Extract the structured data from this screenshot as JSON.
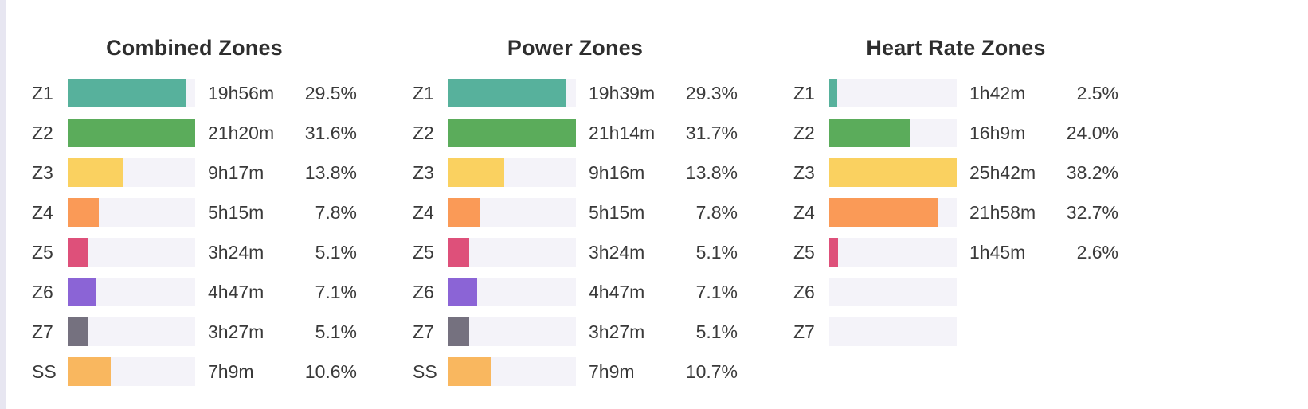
{
  "page": {
    "background_color": "#ffffff",
    "left_edge_strip_color": "#e7e6f1",
    "track_color": "#f4f3f9",
    "text_color": "#3a3a3a",
    "title_color": "#2e2e2e"
  },
  "chart_data": [
    {
      "type": "bar",
      "orientation": "horizontal",
      "title": "Combined Zones",
      "bar_scale": "relative-to-max-pct",
      "max_pct": 31.6,
      "categories": [
        "Z1",
        "Z2",
        "Z3",
        "Z4",
        "Z5",
        "Z6",
        "Z7",
        "SS"
      ],
      "rows": [
        {
          "zone": "Z1",
          "time": "19h56m",
          "pct_label": "29.5%",
          "pct": 29.5,
          "color": "#57b19c"
        },
        {
          "zone": "Z2",
          "time": "21h20m",
          "pct_label": "31.6%",
          "pct": 31.6,
          "color": "#5bac5b"
        },
        {
          "zone": "Z3",
          "time": "9h17m",
          "pct_label": "13.8%",
          "pct": 13.8,
          "color": "#fad160"
        },
        {
          "zone": "Z4",
          "time": "5h15m",
          "pct_label": "7.8%",
          "pct": 7.8,
          "color": "#fa9a57"
        },
        {
          "zone": "Z5",
          "time": "3h24m",
          "pct_label": "5.1%",
          "pct": 5.1,
          "color": "#de507a"
        },
        {
          "zone": "Z6",
          "time": "4h47m",
          "pct_label": "7.1%",
          "pct": 7.1,
          "color": "#8b64d6"
        },
        {
          "zone": "Z7",
          "time": "3h27m",
          "pct_label": "5.1%",
          "pct": 5.1,
          "color": "#75717f"
        },
        {
          "zone": "SS",
          "time": "7h9m",
          "pct_label": "10.6%",
          "pct": 10.6,
          "color": "#f9b75f"
        }
      ]
    },
    {
      "type": "bar",
      "orientation": "horizontal",
      "title": "Power Zones",
      "bar_scale": "relative-to-max-pct",
      "max_pct": 31.7,
      "categories": [
        "Z1",
        "Z2",
        "Z3",
        "Z4",
        "Z5",
        "Z6",
        "Z7",
        "SS"
      ],
      "rows": [
        {
          "zone": "Z1",
          "time": "19h39m",
          "pct_label": "29.3%",
          "pct": 29.3,
          "color": "#57b19c"
        },
        {
          "zone": "Z2",
          "time": "21h14m",
          "pct_label": "31.7%",
          "pct": 31.7,
          "color": "#5bac5b"
        },
        {
          "zone": "Z3",
          "time": "9h16m",
          "pct_label": "13.8%",
          "pct": 13.8,
          "color": "#fad160"
        },
        {
          "zone": "Z4",
          "time": "5h15m",
          "pct_label": "7.8%",
          "pct": 7.8,
          "color": "#fa9a57"
        },
        {
          "zone": "Z5",
          "time": "3h24m",
          "pct_label": "5.1%",
          "pct": 5.1,
          "color": "#de507a"
        },
        {
          "zone": "Z6",
          "time": "4h47m",
          "pct_label": "7.1%",
          "pct": 7.1,
          "color": "#8b64d6"
        },
        {
          "zone": "Z7",
          "time": "3h27m",
          "pct_label": "5.1%",
          "pct": 5.1,
          "color": "#75717f"
        },
        {
          "zone": "SS",
          "time": "7h9m",
          "pct_label": "10.7%",
          "pct": 10.7,
          "color": "#f9b75f"
        }
      ]
    },
    {
      "type": "bar",
      "orientation": "horizontal",
      "title": "Heart Rate Zones",
      "bar_scale": "relative-to-max-pct",
      "max_pct": 38.2,
      "categories": [
        "Z1",
        "Z2",
        "Z3",
        "Z4",
        "Z5",
        "Z6",
        "Z7"
      ],
      "rows": [
        {
          "zone": "Z1",
          "time": "1h42m",
          "pct_label": "2.5%",
          "pct": 2.5,
          "color": "#57b19c"
        },
        {
          "zone": "Z2",
          "time": "16h9m",
          "pct_label": "24.0%",
          "pct": 24.0,
          "color": "#5bac5b"
        },
        {
          "zone": "Z3",
          "time": "25h42m",
          "pct_label": "38.2%",
          "pct": 38.2,
          "color": "#fad160"
        },
        {
          "zone": "Z4",
          "time": "21h58m",
          "pct_label": "32.7%",
          "pct": 32.7,
          "color": "#fa9a57"
        },
        {
          "zone": "Z5",
          "time": "1h45m",
          "pct_label": "2.6%",
          "pct": 2.6,
          "color": "#de507a"
        },
        {
          "zone": "Z6",
          "time": "",
          "pct_label": "",
          "pct": 0,
          "color": "#8b64d6"
        },
        {
          "zone": "Z7",
          "time": "",
          "pct_label": "",
          "pct": 0,
          "color": "#75717f"
        }
      ]
    }
  ]
}
